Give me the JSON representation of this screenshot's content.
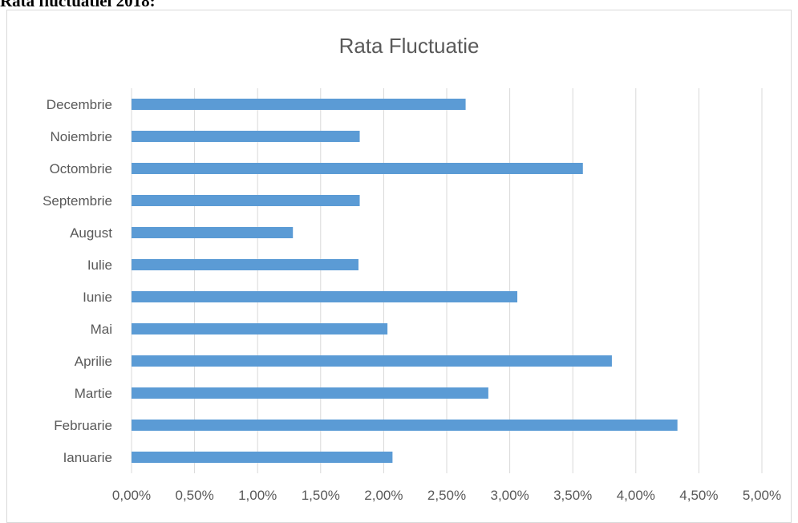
{
  "document": {
    "heading": "Rata fluctuatiei 2018:"
  },
  "chart_data": {
    "type": "bar",
    "orientation": "horizontal",
    "title": "Rata Fluctuatie",
    "categories": [
      "Ianuarie",
      "Februarie",
      "Martie",
      "Aprilie",
      "Mai",
      "Iunie",
      "Iulie",
      "August",
      "Septembrie",
      "Octombrie",
      "Noiembrie",
      "Decembrie"
    ],
    "values": [
      2.07,
      4.33,
      2.83,
      3.81,
      2.03,
      3.06,
      1.8,
      1.28,
      1.81,
      3.58,
      1.81,
      2.65
    ],
    "value_unit": "%",
    "xlim": [
      0,
      5
    ],
    "xticks": [
      "0,00%",
      "0,50%",
      "1,00%",
      "1,50%",
      "2,00%",
      "2,50%",
      "3,00%",
      "3,50%",
      "4,00%",
      "4,50%",
      "5,00%"
    ],
    "grid": "vertical",
    "bar_color": "#5b9bd5",
    "xlabel": "",
    "ylabel": ""
  }
}
